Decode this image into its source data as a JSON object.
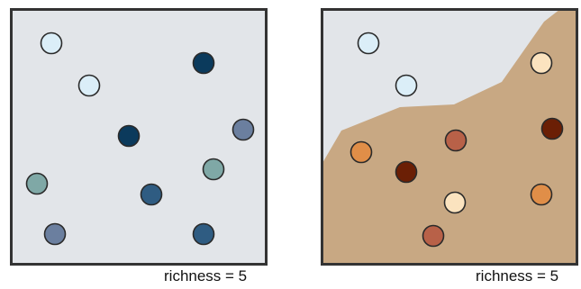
{
  "colors": {
    "panel_background": "#e2e5e9",
    "border": "#333333",
    "sand_region": "#c8a883",
    "circle_stroke": "#2a2a2a"
  },
  "panels": [
    {
      "caption": "richness = 5",
      "circles": [
        {
          "color": "#dbeef8"
        },
        {
          "color": "#dbeef8"
        },
        {
          "color": "#0b3a5c"
        },
        {
          "color": "#0b3a5c"
        },
        {
          "color": "#6b7f9f"
        },
        {
          "color": "#6b7f9f"
        },
        {
          "color": "#7fa8a6"
        },
        {
          "color": "#7fa8a6"
        },
        {
          "color": "#2f5c82"
        },
        {
          "color": "#2f5c82"
        }
      ]
    },
    {
      "caption": "richness = 5",
      "circles": [
        {
          "color": "#dbeef8"
        },
        {
          "color": "#dbeef8"
        },
        {
          "color": "#fbe3bf"
        },
        {
          "color": "#fbe3bf"
        },
        {
          "color": "#6b1f05"
        },
        {
          "color": "#6b1f05"
        },
        {
          "color": "#b86148"
        },
        {
          "color": "#b86148"
        },
        {
          "color": "#e08e48"
        },
        {
          "color": "#e08e48"
        }
      ]
    }
  ]
}
